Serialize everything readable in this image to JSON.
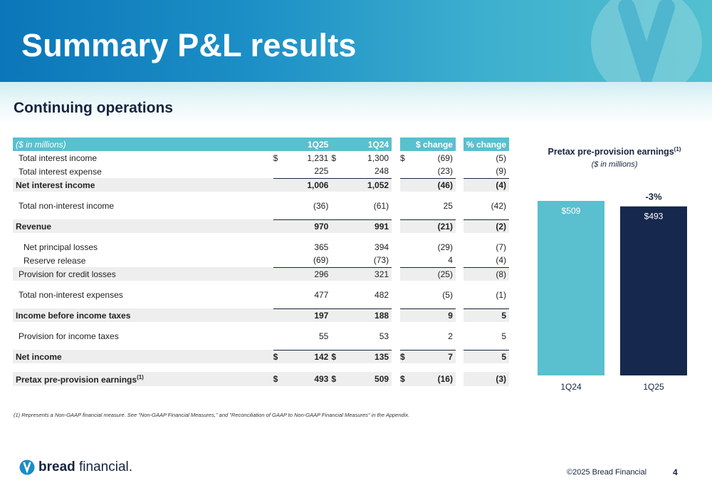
{
  "header": {
    "title": "Summary P&L results"
  },
  "section_title": "Continuing operations",
  "table": {
    "columns": [
      "($ in millions)",
      "1Q25",
      "1Q24",
      "$ change",
      "% change"
    ],
    "rows": [
      {
        "label": "Total interest income",
        "d1": "$",
        "v1": "1,231",
        "d2": "$",
        "v2": "1,300",
        "d3": "$",
        "v3": "(69)",
        "v4": "(5)"
      },
      {
        "label": "Total interest expense",
        "d1": "",
        "v1": "225",
        "d2": "",
        "v2": "248",
        "d3": "",
        "v3": "(23)",
        "v4": "(9)"
      },
      {
        "label": "Net interest income",
        "d1": "",
        "v1": "1,006",
        "d2": "",
        "v2": "1,052",
        "d3": "",
        "v3": "(46)",
        "v4": "(4)"
      },
      {
        "label": "Total non-interest income",
        "d1": "",
        "v1": "(36)",
        "d2": "",
        "v2": "(61)",
        "d3": "",
        "v3": "25",
        "v4": "(42)"
      },
      {
        "label": "Revenue",
        "d1": "",
        "v1": "970",
        "d2": "",
        "v2": "991",
        "d3": "",
        "v3": "(21)",
        "v4": "(2)"
      },
      {
        "label": "Net principal losses",
        "d1": "",
        "v1": "365",
        "d2": "",
        "v2": "394",
        "d3": "",
        "v3": "(29)",
        "v4": "(7)"
      },
      {
        "label": "Reserve release",
        "d1": "",
        "v1": "(69)",
        "d2": "",
        "v2": "(73)",
        "d3": "",
        "v3": "4",
        "v4": "(4)"
      },
      {
        "label": "Provision for credit losses",
        "d1": "",
        "v1": "296",
        "d2": "",
        "v2": "321",
        "d3": "",
        "v3": "(25)",
        "v4": "(8)"
      },
      {
        "label": "Total non-interest expenses",
        "d1": "",
        "v1": "477",
        "d2": "",
        "v2": "482",
        "d3": "",
        "v3": "(5)",
        "v4": "(1)"
      },
      {
        "label": "Income before income taxes",
        "d1": "",
        "v1": "197",
        "d2": "",
        "v2": "188",
        "d3": "",
        "v3": "9",
        "v4": "5"
      },
      {
        "label": "Provision for income taxes",
        "d1": "",
        "v1": "55",
        "d2": "",
        "v2": "53",
        "d3": "",
        "v3": "2",
        "v4": "5"
      },
      {
        "label": "Net income",
        "d1": "$",
        "v1": "142",
        "d2": "$",
        "v2": "135",
        "d3": "$",
        "v3": "7",
        "v4": "5"
      },
      {
        "label": "Pretax pre-provision earnings",
        "sup": "(1)",
        "d1": "$",
        "v1": "493",
        "d2": "$",
        "v2": "509",
        "d3": "$",
        "v3": "(16)",
        "v4": "(3)"
      }
    ]
  },
  "footnote": "(1)  Represents a Non-GAAP financial measure.  See \"Non-GAAP Financial Measures,\" and \"Reconciliation of GAAP to Non-GAAP Financial Measures\" in the Appendix.",
  "chart_data": {
    "type": "bar",
    "title": "Pretax pre-provision earnings",
    "title_sup": "(1)",
    "subtitle": "($ in millions)",
    "categories": [
      "1Q24",
      "1Q25"
    ],
    "values": [
      509,
      493
    ],
    "value_labels": [
      "$509",
      "$493"
    ],
    "colors": [
      "#5abfce",
      "#16284d"
    ],
    "annotation": "-3%",
    "ylim": [
      0,
      509
    ]
  },
  "footer": {
    "brand_bold": "bread",
    "brand_light": "financial.",
    "copyright": "©2025 Bread Financial",
    "page_number": "4"
  }
}
